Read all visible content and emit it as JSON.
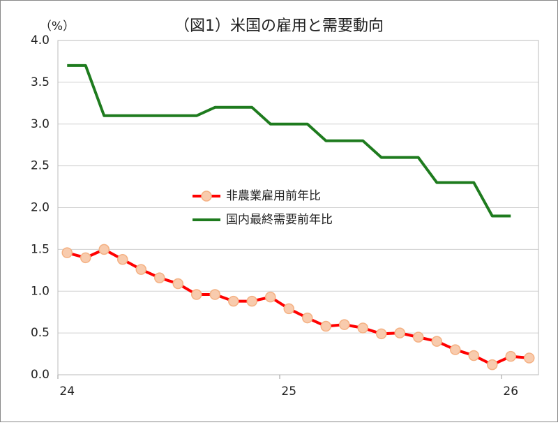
{
  "chart_data": {
    "type": "line",
    "title": "（図1）米国の雇用と需要動向",
    "y_unit": "（%）",
    "categories": [
      "24",
      null,
      null,
      null,
      null,
      null,
      null,
      null,
      null,
      null,
      null,
      null,
      "25",
      null,
      null,
      null,
      null,
      null,
      null,
      null,
      null,
      null,
      null,
      null,
      "26",
      null
    ],
    "series": [
      {
        "name": "非農業雇用前年比",
        "color": "#ff0000",
        "marker_color": "#f8cbad",
        "values": [
          1.46,
          1.4,
          1.5,
          1.38,
          1.26,
          1.16,
          1.09,
          0.96,
          0.96,
          0.88,
          0.88,
          0.93,
          0.79,
          0.68,
          0.58,
          0.6,
          0.56,
          0.49,
          0.5,
          0.45,
          0.4,
          0.3,
          0.23,
          0.12,
          0.22,
          0.2
        ]
      },
      {
        "name": "国内最終需要前年比",
        "color": "#1e7b1e",
        "values": [
          3.7,
          3.7,
          3.1,
          3.1,
          3.1,
          3.1,
          3.1,
          3.1,
          3.2,
          3.2,
          3.2,
          3.0,
          3.0,
          3.0,
          2.8,
          2.8,
          2.8,
          2.6,
          2.6,
          2.6,
          2.3,
          2.3,
          2.3,
          1.9,
          1.9,
          null
        ]
      }
    ],
    "ylim": [
      0,
      4
    ],
    "yticks": [
      {
        "value": 0,
        "label": "0.0"
      },
      0.5,
      {
        "value": 1,
        "label": "1.0"
      },
      1.5,
      {
        "value": 2,
        "label": "2.0"
      },
      2.5,
      {
        "value": 3,
        "label": "3.0"
      },
      3.5,
      {
        "value": 4,
        "label": "4.0"
      }
    ],
    "grid": true,
    "legend": "center"
  }
}
